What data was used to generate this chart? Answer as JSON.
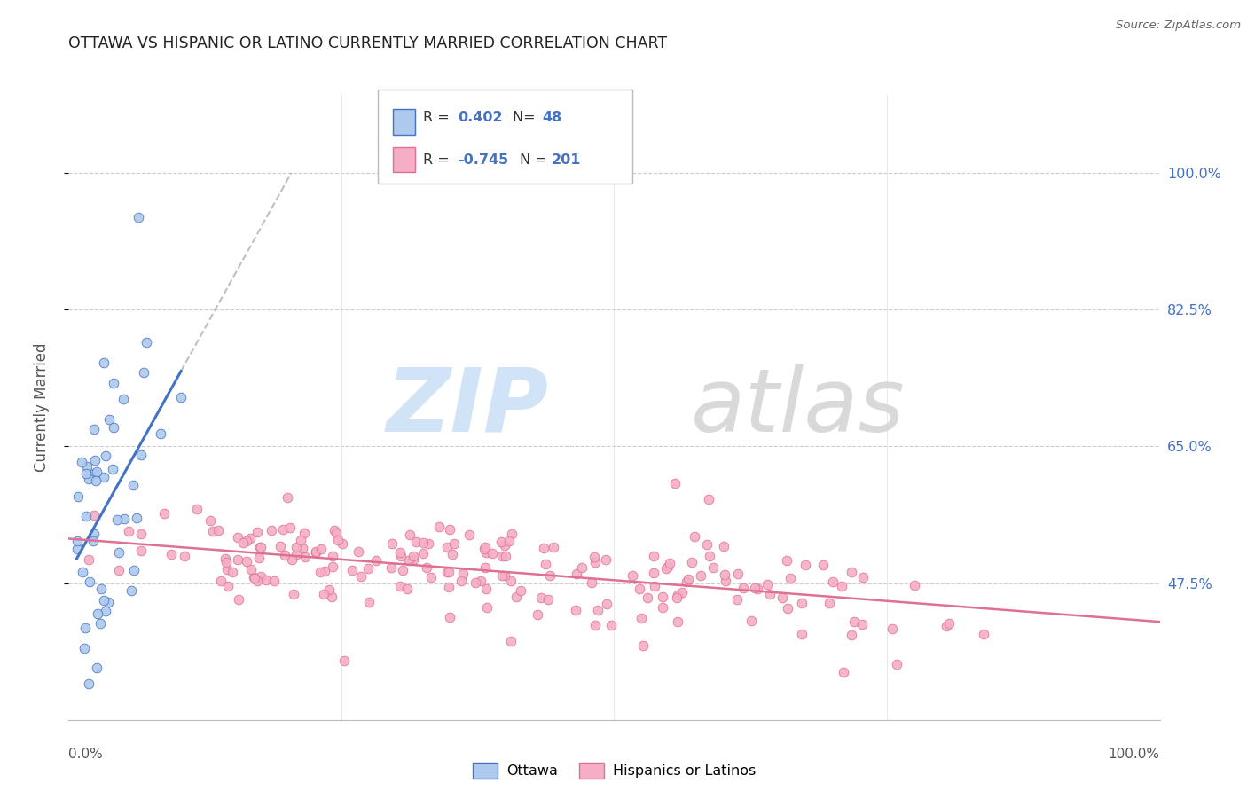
{
  "title": "OTTAWA VS HISPANIC OR LATINO CURRENTLY MARRIED CORRELATION CHART",
  "source": "Source: ZipAtlas.com",
  "ylabel": "Currently Married",
  "legend_ottawa_R": "0.402",
  "legend_ottawa_N": "48",
  "legend_hispanic_R": "-0.745",
  "legend_hispanic_N": "201",
  "yticks_labels": [
    "47.5%",
    "65.0%",
    "82.5%",
    "100.0%"
  ],
  "yticks_vals": [
    0.475,
    0.65,
    0.825,
    1.0
  ],
  "xlim": [
    0.0,
    1.0
  ],
  "ylim": [
    0.3,
    1.1
  ],
  "ottawa_color": "#adc9ed",
  "ottawa_line_color": "#4472c4",
  "hispanic_color": "#f5aec5",
  "hispanic_line_color": "#e07090",
  "bg_color": "#ffffff",
  "grid_color": "#cccccc",
  "title_color": "#222222",
  "axis_label_color": "#555555",
  "right_tick_color": "#4472c4",
  "watermark_zip_color": "#cce0f5",
  "watermark_atlas_color": "#d5d5d5"
}
